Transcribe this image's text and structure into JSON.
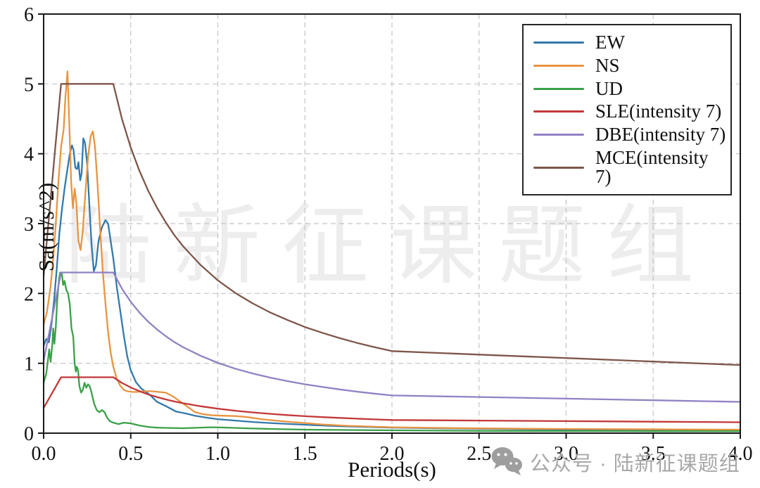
{
  "watermark": {
    "text": "陆新征课题组"
  },
  "footer": {
    "icon": "wechat-icon",
    "text": "公众号 · 陆新征课题组"
  },
  "chart_data": {
    "type": "line",
    "title": "",
    "xlabel": "Periods(s)",
    "ylabel": "Sa(m/s^2)",
    "xlim": [
      0.0,
      4.0
    ],
    "ylim": [
      0,
      6
    ],
    "xticks": [
      0.0,
      0.5,
      1.0,
      1.5,
      2.0,
      2.5,
      3.0,
      3.5,
      4.0
    ],
    "xtick_labels": [
      "0.0",
      "0.5",
      "1.0",
      "1.5",
      "2.0",
      "2.5",
      "3.0",
      "3.5",
      "4.0"
    ],
    "yticks": [
      0,
      1,
      2,
      3,
      4,
      5,
      6
    ],
    "ytick_labels": [
      "0",
      "1",
      "2",
      "3",
      "4",
      "5",
      "6"
    ],
    "grid": true,
    "grid_style": "dashed",
    "legend_position": "upper right",
    "series": [
      {
        "name": "EW",
        "color": "#3379ab",
        "points": [
          [
            0,
            1.25
          ],
          [
            0.015,
            1.35
          ],
          [
            0.03,
            1.3
          ],
          [
            0.045,
            1.55
          ],
          [
            0.06,
            1.9
          ],
          [
            0.075,
            2.35
          ],
          [
            0.09,
            2.85
          ],
          [
            0.105,
            3.2
          ],
          [
            0.12,
            3.5
          ],
          [
            0.135,
            3.75
          ],
          [
            0.15,
            4.0
          ],
          [
            0.163,
            4.12
          ],
          [
            0.172,
            4.05
          ],
          [
            0.182,
            3.8
          ],
          [
            0.192,
            3.78
          ],
          [
            0.2,
            3.88
          ],
          [
            0.21,
            3.62
          ],
          [
            0.218,
            3.72
          ],
          [
            0.228,
            4.22
          ],
          [
            0.238,
            4.15
          ],
          [
            0.25,
            3.85
          ],
          [
            0.262,
            3.3
          ],
          [
            0.275,
            2.7
          ],
          [
            0.288,
            2.32
          ],
          [
            0.3,
            2.4
          ],
          [
            0.315,
            2.75
          ],
          [
            0.335,
            2.95
          ],
          [
            0.355,
            3.05
          ],
          [
            0.37,
            3.0
          ],
          [
            0.385,
            2.75
          ],
          [
            0.4,
            2.5
          ],
          [
            0.42,
            2.1
          ],
          [
            0.44,
            1.75
          ],
          [
            0.46,
            1.4
          ],
          [
            0.48,
            1.1
          ],
          [
            0.5,
            0.9
          ],
          [
            0.53,
            0.73
          ],
          [
            0.56,
            0.64
          ],
          [
            0.61,
            0.55
          ],
          [
            0.65,
            0.45
          ],
          [
            0.7,
            0.39
          ],
          [
            0.76,
            0.31
          ],
          [
            0.82,
            0.28
          ],
          [
            0.87,
            0.25
          ],
          [
            0.94,
            0.22
          ],
          [
            1.0,
            0.2
          ],
          [
            1.1,
            0.18
          ],
          [
            1.2,
            0.16
          ],
          [
            1.3,
            0.145
          ],
          [
            1.42,
            0.13
          ],
          [
            1.55,
            0.115
          ],
          [
            1.7,
            0.1
          ],
          [
            1.85,
            0.09
          ],
          [
            2.0,
            0.08
          ],
          [
            2.3,
            0.068
          ],
          [
            2.6,
            0.06
          ],
          [
            3.0,
            0.05
          ],
          [
            3.5,
            0.042
          ],
          [
            4.0,
            0.038
          ]
        ]
      },
      {
        "name": "NS",
        "color": "#e89440",
        "points": [
          [
            0,
            1.55
          ],
          [
            0.02,
            1.75
          ],
          [
            0.04,
            2.1
          ],
          [
            0.055,
            2.5
          ],
          [
            0.07,
            3.0
          ],
          [
            0.085,
            3.6
          ],
          [
            0.1,
            4.1
          ],
          [
            0.115,
            4.35
          ],
          [
            0.125,
            4.8
          ],
          [
            0.137,
            5.18
          ],
          [
            0.149,
            4.3
          ],
          [
            0.158,
            3.6
          ],
          [
            0.168,
            3.22
          ],
          [
            0.178,
            3.5
          ],
          [
            0.188,
            3.3
          ],
          [
            0.2,
            2.75
          ],
          [
            0.212,
            2.62
          ],
          [
            0.225,
            2.9
          ],
          [
            0.24,
            3.45
          ],
          [
            0.255,
            3.95
          ],
          [
            0.27,
            4.25
          ],
          [
            0.283,
            4.32
          ],
          [
            0.295,
            4.1
          ],
          [
            0.31,
            3.55
          ],
          [
            0.325,
            2.9
          ],
          [
            0.34,
            2.3
          ],
          [
            0.355,
            1.85
          ],
          [
            0.37,
            1.45
          ],
          [
            0.385,
            1.15
          ],
          [
            0.4,
            0.95
          ],
          [
            0.42,
            0.78
          ],
          [
            0.44,
            0.68
          ],
          [
            0.46,
            0.62
          ],
          [
            0.48,
            0.6
          ],
          [
            0.51,
            0.59
          ],
          [
            0.54,
            0.59
          ],
          [
            0.58,
            0.6
          ],
          [
            0.62,
            0.6
          ],
          [
            0.66,
            0.59
          ],
          [
            0.7,
            0.58
          ],
          [
            0.74,
            0.53
          ],
          [
            0.78,
            0.46
          ],
          [
            0.83,
            0.37
          ],
          [
            0.87,
            0.3
          ],
          [
            0.92,
            0.27
          ],
          [
            0.97,
            0.255
          ],
          [
            1.03,
            0.25
          ],
          [
            1.1,
            0.245
          ],
          [
            1.17,
            0.23
          ],
          [
            1.25,
            0.2
          ],
          [
            1.33,
            0.18
          ],
          [
            1.42,
            0.16
          ],
          [
            1.5,
            0.145
          ],
          [
            1.6,
            0.125
          ],
          [
            1.75,
            0.105
          ],
          [
            2.0,
            0.085
          ],
          [
            2.25,
            0.075
          ],
          [
            2.5,
            0.068
          ],
          [
            3.0,
            0.06
          ],
          [
            3.5,
            0.055
          ],
          [
            4.0,
            0.05
          ]
        ]
      },
      {
        "name": "UD",
        "color": "#3aa048",
        "points": [
          [
            0,
            0.72
          ],
          [
            0.015,
            0.85
          ],
          [
            0.025,
            1.05
          ],
          [
            0.032,
            1.2
          ],
          [
            0.04,
            1.02
          ],
          [
            0.05,
            1.28
          ],
          [
            0.055,
            1.5
          ],
          [
            0.062,
            1.28
          ],
          [
            0.07,
            1.52
          ],
          [
            0.078,
            1.9
          ],
          [
            0.088,
            2.2
          ],
          [
            0.095,
            2.3
          ],
          [
            0.105,
            2.28
          ],
          [
            0.112,
            2.12
          ],
          [
            0.12,
            2.18
          ],
          [
            0.13,
            2.05
          ],
          [
            0.14,
            2.0
          ],
          [
            0.15,
            1.85
          ],
          [
            0.16,
            1.5
          ],
          [
            0.17,
            1.38
          ],
          [
            0.178,
            1.0
          ],
          [
            0.185,
            0.88
          ],
          [
            0.19,
            0.95
          ],
          [
            0.198,
            0.9
          ],
          [
            0.205,
            0.68
          ],
          [
            0.215,
            0.58
          ],
          [
            0.225,
            0.62
          ],
          [
            0.235,
            0.72
          ],
          [
            0.245,
            0.65
          ],
          [
            0.255,
            0.7
          ],
          [
            0.265,
            0.67
          ],
          [
            0.275,
            0.58
          ],
          [
            0.29,
            0.42
          ],
          [
            0.305,
            0.33
          ],
          [
            0.32,
            0.3
          ],
          [
            0.335,
            0.33
          ],
          [
            0.35,
            0.3
          ],
          [
            0.365,
            0.22
          ],
          [
            0.38,
            0.17
          ],
          [
            0.4,
            0.15
          ],
          [
            0.43,
            0.13
          ],
          [
            0.46,
            0.15
          ],
          [
            0.5,
            0.14
          ],
          [
            0.55,
            0.11
          ],
          [
            0.6,
            0.09
          ],
          [
            0.65,
            0.08
          ],
          [
            0.7,
            0.075
          ],
          [
            0.8,
            0.07
          ],
          [
            0.9,
            0.08
          ],
          [
            0.97,
            0.085
          ],
          [
            1.05,
            0.08
          ],
          [
            1.15,
            0.07
          ],
          [
            1.3,
            0.06
          ],
          [
            1.5,
            0.05
          ],
          [
            1.75,
            0.045
          ],
          [
            2.0,
            0.04
          ],
          [
            2.5,
            0.032
          ],
          [
            3.0,
            0.03
          ],
          [
            3.5,
            0.028
          ],
          [
            4.0,
            0.028
          ]
        ]
      },
      {
        "name": "SLE(intensity 7)",
        "color": "#c33838",
        "points": [
          [
            0,
            0.36
          ],
          [
            0.1,
            0.8
          ],
          [
            0.4,
            0.8
          ],
          [
            0.45,
            0.719
          ],
          [
            0.5,
            0.654
          ],
          [
            0.55,
            0.601
          ],
          [
            0.6,
            0.555
          ],
          [
            0.65,
            0.517
          ],
          [
            0.7,
            0.483
          ],
          [
            0.75,
            0.454
          ],
          [
            0.8,
            0.429
          ],
          [
            0.9,
            0.386
          ],
          [
            1.0,
            0.35
          ],
          [
            1.1,
            0.321
          ],
          [
            1.2,
            0.297
          ],
          [
            1.3,
            0.277
          ],
          [
            1.4,
            0.259
          ],
          [
            1.5,
            0.243
          ],
          [
            1.6,
            0.23
          ],
          [
            1.7,
            0.218
          ],
          [
            1.8,
            0.207
          ],
          [
            1.9,
            0.197
          ],
          [
            2.0,
            0.188
          ],
          [
            2.5,
            0.18
          ],
          [
            3.0,
            0.172
          ],
          [
            3.5,
            0.164
          ],
          [
            4.0,
            0.156
          ]
        ]
      },
      {
        "name": "DBE(intensity 7)",
        "color": "#9181c4",
        "points": [
          [
            0,
            1.035
          ],
          [
            0.1,
            2.3
          ],
          [
            0.4,
            2.3
          ],
          [
            0.45,
            2.068
          ],
          [
            0.5,
            1.881
          ],
          [
            0.55,
            1.728
          ],
          [
            0.6,
            1.597
          ],
          [
            0.65,
            1.487
          ],
          [
            0.7,
            1.39
          ],
          [
            0.75,
            1.305
          ],
          [
            0.8,
            1.232
          ],
          [
            0.9,
            1.109
          ],
          [
            1.0,
            1.007
          ],
          [
            1.1,
            0.923
          ],
          [
            1.2,
            0.855
          ],
          [
            1.3,
            0.795
          ],
          [
            1.4,
            0.745
          ],
          [
            1.5,
            0.7
          ],
          [
            1.6,
            0.661
          ],
          [
            1.7,
            0.626
          ],
          [
            1.8,
            0.594
          ],
          [
            1.9,
            0.566
          ],
          [
            2.0,
            0.54
          ],
          [
            2.5,
            0.517
          ],
          [
            3.0,
            0.494
          ],
          [
            3.5,
            0.471
          ],
          [
            4.0,
            0.448
          ]
        ]
      },
      {
        "name": "MCE(intensity 7)",
        "color": "#7e564a",
        "points": [
          [
            0,
            2.25
          ],
          [
            0.1,
            5.0
          ],
          [
            0.4,
            5.0
          ],
          [
            0.45,
            4.495
          ],
          [
            0.5,
            4.089
          ],
          [
            0.55,
            3.757
          ],
          [
            0.6,
            3.472
          ],
          [
            0.65,
            3.232
          ],
          [
            0.7,
            3.022
          ],
          [
            0.75,
            2.837
          ],
          [
            0.8,
            2.678
          ],
          [
            0.9,
            2.41
          ],
          [
            1.0,
            2.188
          ],
          [
            1.1,
            2.007
          ],
          [
            1.2,
            1.858
          ],
          [
            1.3,
            1.729
          ],
          [
            1.4,
            1.62
          ],
          [
            1.5,
            1.519
          ],
          [
            1.6,
            1.437
          ],
          [
            1.7,
            1.36
          ],
          [
            1.8,
            1.292
          ],
          [
            1.9,
            1.231
          ],
          [
            2.0,
            1.175
          ],
          [
            2.5,
            1.125
          ],
          [
            3.0,
            1.075
          ],
          [
            3.5,
            1.025
          ],
          [
            4.0,
            0.975
          ]
        ]
      }
    ]
  }
}
